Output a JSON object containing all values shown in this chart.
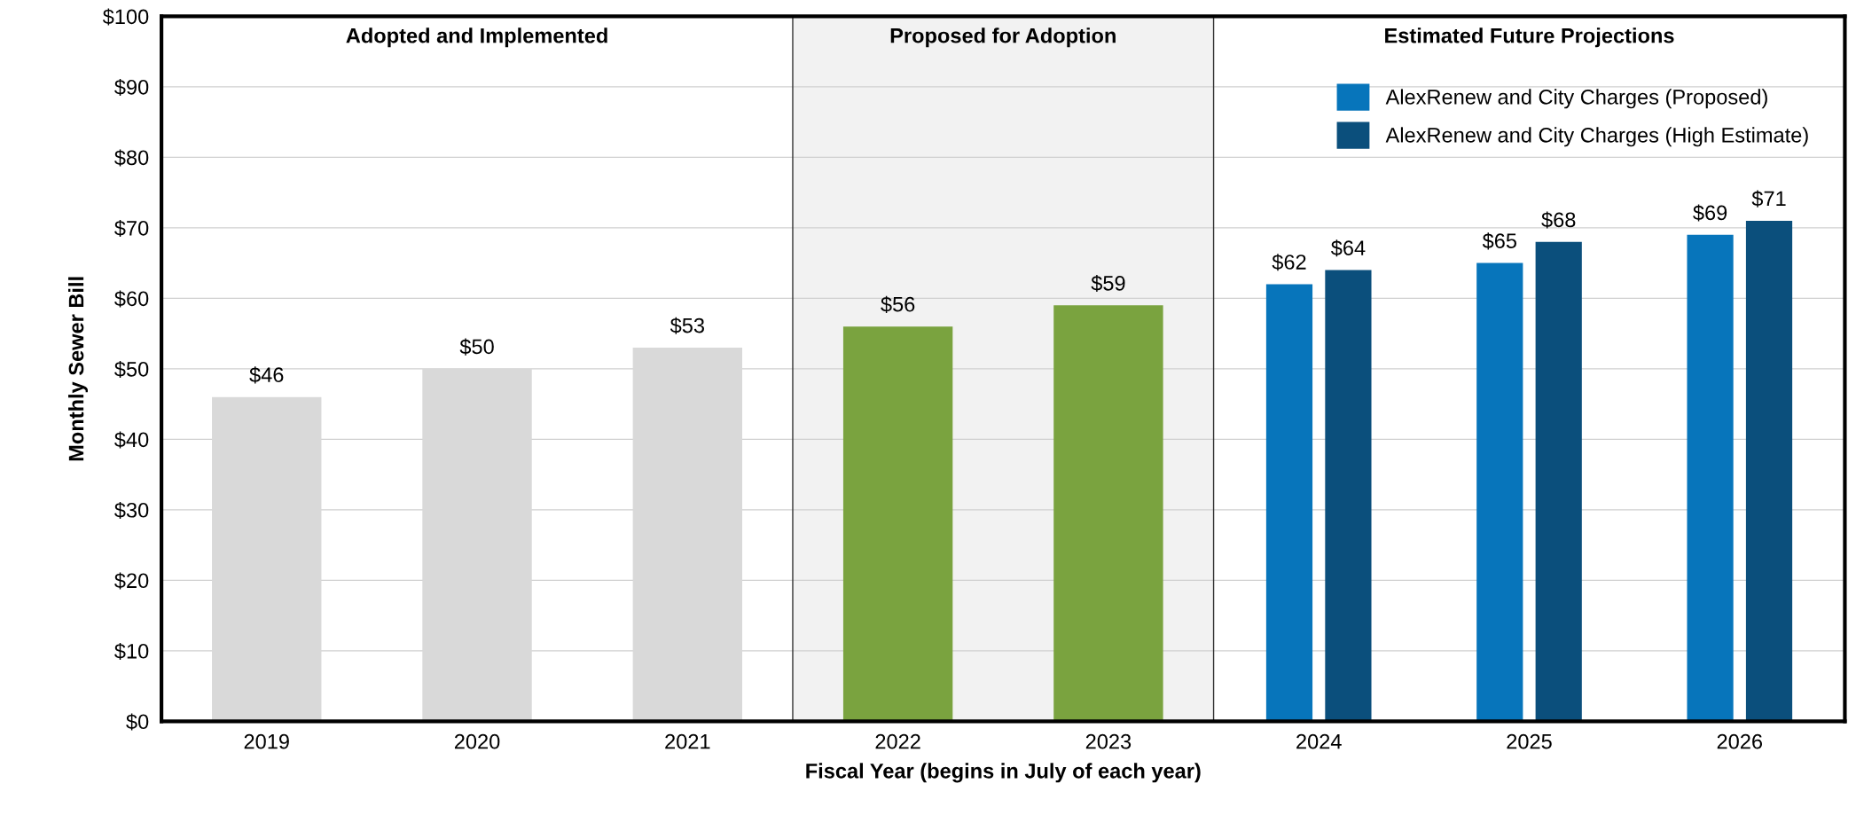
{
  "chart_data": {
    "type": "bar",
    "xlabel": "Fiscal Year (begins in July of each year)",
    "ylabel": "Monthly Sewer Bill",
    "categories": [
      "2019",
      "2020",
      "2021",
      "2022",
      "2023",
      "2024",
      "2025",
      "2026"
    ],
    "series": [
      {
        "color": "#d9d9d9",
        "values": [
          46,
          50,
          53,
          null,
          null,
          null,
          null,
          null
        ],
        "value_labels": [
          "$46",
          "$50",
          "$53",
          null,
          null,
          null,
          null,
          null
        ]
      },
      {
        "color": "#7aa33f",
        "values": [
          null,
          null,
          null,
          56,
          59,
          null,
          null,
          null
        ],
        "value_labels": [
          null,
          null,
          null,
          "$56",
          "$59",
          null,
          null,
          null
        ]
      },
      {
        "name": "AlexRenew and City Charges (Proposed)",
        "color": "#0775bb",
        "values": [
          null,
          null,
          null,
          null,
          null,
          62,
          65,
          69
        ],
        "value_labels": [
          null,
          null,
          null,
          null,
          null,
          "$62",
          "$65",
          "$69"
        ]
      },
      {
        "name": "AlexRenew and City Charges (High Estimate)",
        "color": "#0b4f7c",
        "values": [
          null,
          null,
          null,
          null,
          null,
          64,
          68,
          71
        ],
        "value_labels": [
          null,
          null,
          null,
          null,
          null,
          "$64",
          "$68",
          "$71"
        ]
      }
    ],
    "ylim": [
      0,
      100
    ],
    "yticks": [
      {
        "value": 0,
        "label": "$0"
      },
      {
        "value": 10,
        "label": "$10"
      },
      {
        "value": 20,
        "label": "$20"
      },
      {
        "value": 30,
        "label": "$30"
      },
      {
        "value": 40,
        "label": "$40"
      },
      {
        "value": 50,
        "label": "$50"
      },
      {
        "value": 60,
        "label": "$60"
      },
      {
        "value": 70,
        "label": "$70"
      },
      {
        "value": 80,
        "label": "$80"
      },
      {
        "value": 90,
        "label": "$90"
      },
      {
        "value": 100,
        "label": "$100"
      }
    ],
    "bands": [
      {
        "axis": "x",
        "from": "2022",
        "to": "2023",
        "label": "Proposed for Adoption",
        "color": "#f2f2f2"
      }
    ],
    "annotations": [
      "Adopted and Implemented",
      "Estimated Future Projections"
    ],
    "grid": "y",
    "legend": "top right"
  }
}
